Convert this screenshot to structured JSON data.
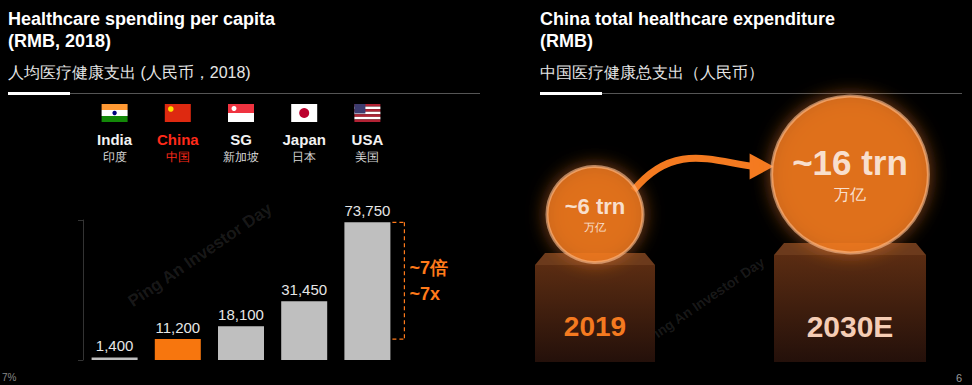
{
  "slide": {
    "page_number": "6",
    "watermark": "Ping An Investor Day",
    "footnote": "7%"
  },
  "chart_data": [
    {
      "type": "bar",
      "title": "Healthcare spending per capita\n(RMB, 2018)",
      "subtitle": "人均医疗健康支出 (人民币，2018)",
      "categories": [
        "India",
        "China",
        "SG",
        "Japan",
        "USA"
      ],
      "category_labels_zh": [
        "印度",
        "中国",
        "新加坡",
        "日本",
        "美国"
      ],
      "values": [
        1400,
        11200,
        18100,
        31450,
        73750
      ],
      "value_labels": [
        "1,400",
        "11,200",
        "18,100",
        "31,450",
        "73,750"
      ],
      "colors": [
        "#bfbfbf",
        "#f7760e",
        "#bfbfbf",
        "#bfbfbf",
        "#bfbfbf"
      ],
      "ylim": [
        0,
        75000
      ],
      "yticks": [
        0,
        75000
      ],
      "tick_labels": "x",
      "grid": false,
      "data_labels": true,
      "annotations": [
        "~7倍",
        "~7x"
      ]
    },
    {
      "type": "bubble",
      "title": "China total healthcare expenditure\n(RMB)",
      "subtitle": "中国医疗健康总支出（人民币）",
      "categories": [
        "2019",
        "2030E"
      ],
      "values": [
        6,
        16
      ],
      "value_labels": [
        "~6 trn",
        "~16 trn"
      ],
      "unit_label": "万亿",
      "color": "#f47a20",
      "data_labels": true
    }
  ]
}
